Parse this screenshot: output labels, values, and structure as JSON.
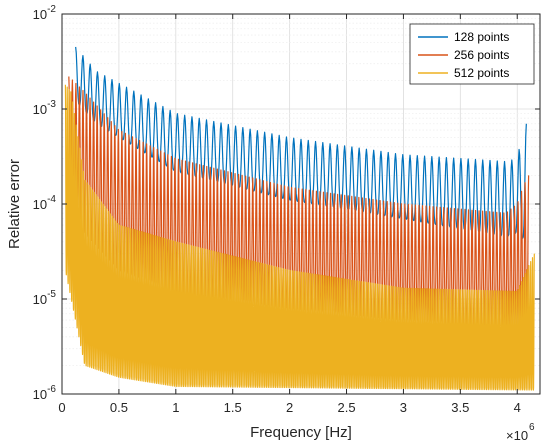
{
  "chart_data": {
    "type": "line",
    "xlabel": "Frequency [Hz]",
    "ylabel": "Relative error",
    "x_multiplier_label": "×10",
    "x_multiplier_exp": "6",
    "xlim": [
      0,
      4200000
    ],
    "ylim": [
      1e-06,
      0.01
    ],
    "y_scale": "log",
    "grid": true,
    "legend_position": "top-right",
    "x_ticks": [
      {
        "value": 0,
        "label": "0"
      },
      {
        "value": 500000,
        "label": "0.5"
      },
      {
        "value": 1000000,
        "label": "1"
      },
      {
        "value": 1500000,
        "label": "1.5"
      },
      {
        "value": 2000000,
        "label": "2"
      },
      {
        "value": 2500000,
        "label": "2.5"
      },
      {
        "value": 3000000,
        "label": "3"
      },
      {
        "value": 3500000,
        "label": "3.5"
      },
      {
        "value": 4000000,
        "label": "4"
      }
    ],
    "y_ticks": [
      {
        "value": 1e-06,
        "base": "10",
        "exp": "-6"
      },
      {
        "value": 1e-05,
        "base": "10",
        "exp": "-5"
      },
      {
        "value": 0.0001,
        "base": "10",
        "exp": "-4"
      },
      {
        "value": 0.001,
        "base": "10",
        "exp": "-3"
      },
      {
        "value": 0.01,
        "base": "10",
        "exp": "-2"
      }
    ],
    "series": [
      {
        "name": "128 points",
        "color": "#0072BD",
        "x_start": 120000,
        "x_end": 4080000,
        "ripples": 62,
        "peak_envelope": [
          [
            120000,
            0.0045
          ],
          [
            300000,
            0.0025
          ],
          [
            1000000,
            0.0009
          ],
          [
            2000000,
            0.0005
          ],
          [
            3000000,
            0.00033
          ],
          [
            3900000,
            0.00028
          ],
          [
            4000000,
            0.0003
          ],
          [
            4050000,
            0.0006
          ],
          [
            4080000,
            0.0007
          ]
        ],
        "trough_envelope": [
          [
            120000,
            0.0012
          ],
          [
            300000,
            0.0007
          ],
          [
            1000000,
            0.00022
          ],
          [
            2000000,
            0.00011
          ],
          [
            3000000,
            7e-05
          ],
          [
            3900000,
            4.5e-05
          ],
          [
            4000000,
            5e-05
          ],
          [
            4080000,
            4e-05
          ]
        ]
      },
      {
        "name": "256 points",
        "color": "#D95319",
        "x_start": 60000,
        "x_end": 4100000,
        "ripples": 130,
        "peak_envelope": [
          [
            60000,
            0.0022
          ],
          [
            200000,
            0.0015
          ],
          [
            500000,
            0.0006
          ],
          [
            1000000,
            0.0003
          ],
          [
            2000000,
            0.00015
          ],
          [
            3000000,
            0.0001
          ],
          [
            3900000,
            8e-05
          ],
          [
            4000000,
            0.0001
          ],
          [
            4050000,
            0.00015
          ],
          [
            4100000,
            0.0002
          ]
        ],
        "trough_envelope": [
          [
            60000,
            0.0002
          ],
          [
            200000,
            5e-05
          ],
          [
            500000,
            2e-05
          ],
          [
            1000000,
            1.2e-05
          ],
          [
            2000000,
            8e-06
          ],
          [
            3000000,
            6e-06
          ],
          [
            4000000,
            5e-06
          ],
          [
            4100000,
            4e-06
          ]
        ]
      },
      {
        "name": "512 points",
        "color": "#EDB120",
        "x_start": 30000,
        "x_end": 4150000,
        "ripples": 260,
        "peak_envelope": [
          [
            30000,
            0.0018
          ],
          [
            80000,
            0.0015
          ],
          [
            200000,
            0.00018
          ],
          [
            500000,
            6e-05
          ],
          [
            1000000,
            4e-05
          ],
          [
            2000000,
            2e-05
          ],
          [
            3000000,
            1.3e-05
          ],
          [
            4000000,
            1.2e-05
          ],
          [
            4150000,
            3e-05
          ]
        ],
        "trough_envelope": [
          [
            30000,
            2e-05
          ],
          [
            200000,
            2e-06
          ],
          [
            500000,
            1.5e-06
          ],
          [
            1000000,
            1.2e-06
          ],
          [
            4150000,
            1.1e-06
          ]
        ]
      }
    ]
  }
}
